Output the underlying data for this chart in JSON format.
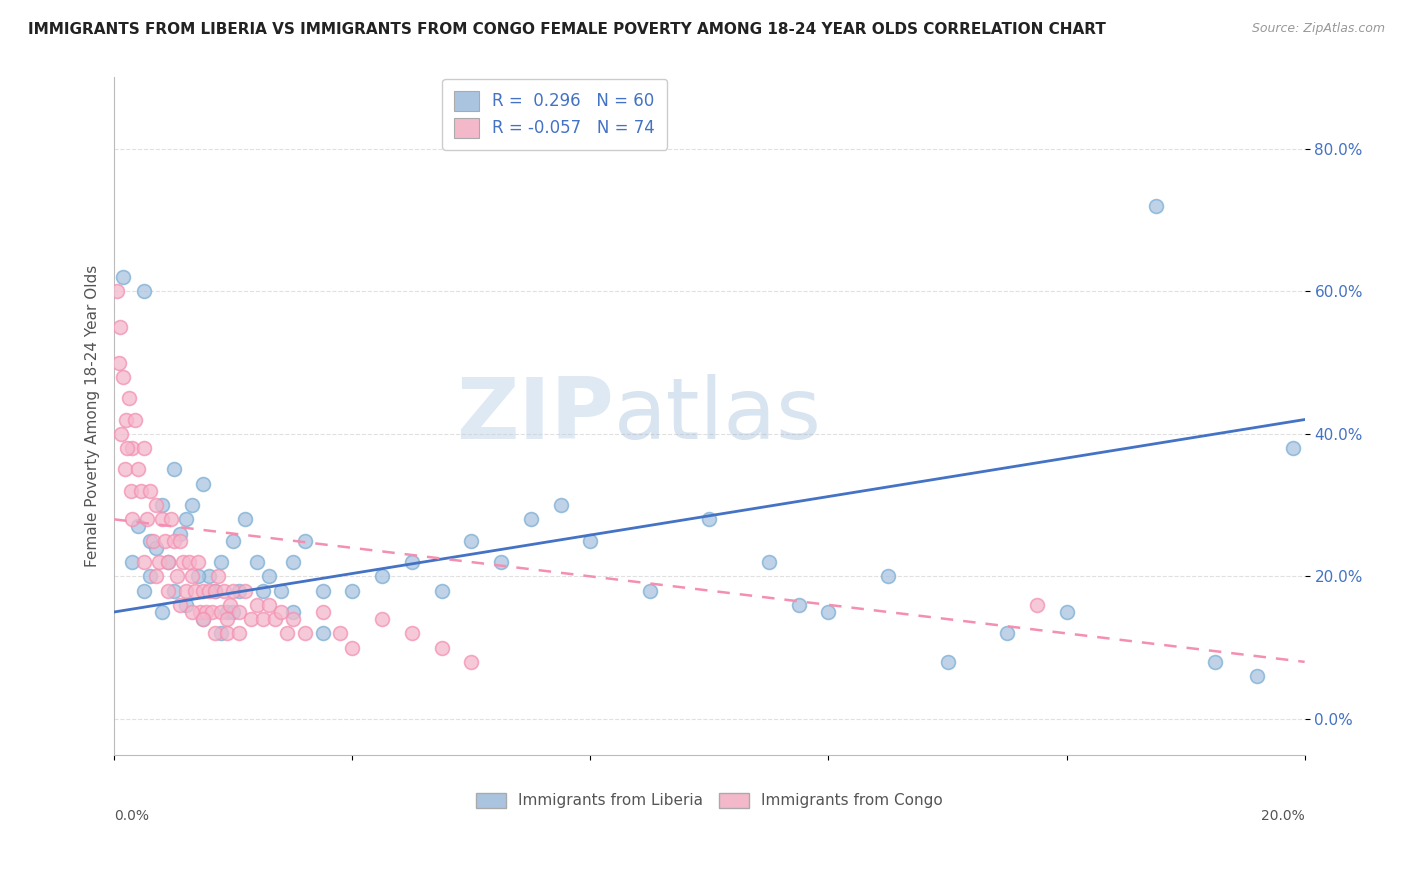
{
  "title": "IMMIGRANTS FROM LIBERIA VS IMMIGRANTS FROM CONGO FEMALE POVERTY AMONG 18-24 YEAR OLDS CORRELATION CHART",
  "source": "Source: ZipAtlas.com",
  "ylabel": "Female Poverty Among 18-24 Year Olds",
  "xlim": [
    0.0,
    20.0
  ],
  "ylim": [
    -5.0,
    90.0
  ],
  "y_ticks": [
    0,
    20,
    40,
    60,
    80
  ],
  "y_tick_labels": [
    "0.0%",
    "20.0%",
    "40.0%",
    "60.0%",
    "80.0%"
  ],
  "liberia_color": "#aac4e0",
  "congo_color": "#f4b8cb",
  "liberia_edge_color": "#7bafd4",
  "congo_edge_color": "#f48fb1",
  "liberia_line_color": "#4472c4",
  "congo_line_color": "#f48fb1",
  "liberia_R": 0.296,
  "liberia_N": 60,
  "congo_R": -0.057,
  "congo_N": 74,
  "watermark_zip": "ZIP",
  "watermark_atlas": "atlas",
  "background_color": "#ffffff",
  "grid_color": "#dddddd",
  "title_fontsize": 11,
  "axis_label_fontsize": 11,
  "tick_fontsize": 10,
  "legend_fontsize": 12,
  "bottom_legend_liberia": "Immigrants from Liberia",
  "bottom_legend_congo": "Immigrants from Congo",
  "liberia_line_x0": 0.0,
  "liberia_line_y0": 15.0,
  "liberia_line_x1": 20.0,
  "liberia_line_y1": 42.0,
  "congo_line_x0": 0.0,
  "congo_line_y0": 28.0,
  "congo_line_x1": 20.0,
  "congo_line_y1": 8.0,
  "liberia_scatter": [
    [
      0.15,
      62.0
    ],
    [
      0.5,
      60.0
    ],
    [
      1.0,
      35.0
    ],
    [
      0.8,
      30.0
    ],
    [
      1.2,
      28.0
    ],
    [
      1.5,
      33.0
    ],
    [
      0.6,
      25.0
    ],
    [
      0.9,
      22.0
    ],
    [
      1.1,
      26.0
    ],
    [
      1.3,
      30.0
    ],
    [
      0.4,
      27.0
    ],
    [
      0.7,
      24.0
    ],
    [
      1.6,
      20.0
    ],
    [
      1.8,
      22.0
    ],
    [
      2.0,
      25.0
    ],
    [
      2.2,
      28.0
    ],
    [
      2.4,
      22.0
    ],
    [
      2.6,
      20.0
    ],
    [
      2.8,
      18.0
    ],
    [
      3.0,
      22.0
    ],
    [
      3.2,
      25.0
    ],
    [
      3.5,
      18.0
    ],
    [
      1.9,
      15.0
    ],
    [
      2.1,
      18.0
    ],
    [
      1.4,
      20.0
    ],
    [
      1.7,
      18.0
    ],
    [
      0.3,
      22.0
    ],
    [
      0.5,
      18.0
    ],
    [
      0.6,
      20.0
    ],
    [
      0.8,
      15.0
    ],
    [
      1.0,
      18.0
    ],
    [
      1.2,
      16.0
    ],
    [
      1.5,
      14.0
    ],
    [
      1.8,
      12.0
    ],
    [
      2.0,
      15.0
    ],
    [
      2.5,
      18.0
    ],
    [
      3.0,
      15.0
    ],
    [
      3.5,
      12.0
    ],
    [
      4.0,
      18.0
    ],
    [
      4.5,
      20.0
    ],
    [
      5.0,
      22.0
    ],
    [
      5.5,
      18.0
    ],
    [
      6.0,
      25.0
    ],
    [
      6.5,
      22.0
    ],
    [
      7.0,
      28.0
    ],
    [
      7.5,
      30.0
    ],
    [
      8.0,
      25.0
    ],
    [
      9.0,
      18.0
    ],
    [
      10.0,
      28.0
    ],
    [
      11.0,
      22.0
    ],
    [
      12.0,
      15.0
    ],
    [
      13.0,
      20.0
    ],
    [
      14.0,
      8.0
    ],
    [
      15.0,
      12.0
    ],
    [
      16.0,
      15.0
    ],
    [
      17.5,
      72.0
    ],
    [
      18.5,
      8.0
    ],
    [
      19.2,
      6.0
    ],
    [
      19.8,
      38.0
    ],
    [
      11.5,
      16.0
    ]
  ],
  "congo_scatter": [
    [
      0.05,
      60.0
    ],
    [
      0.1,
      55.0
    ],
    [
      0.15,
      48.0
    ],
    [
      0.2,
      42.0
    ],
    [
      0.25,
      45.0
    ],
    [
      0.3,
      38.0
    ],
    [
      0.08,
      50.0
    ],
    [
      0.12,
      40.0
    ],
    [
      0.18,
      35.0
    ],
    [
      0.22,
      38.0
    ],
    [
      0.28,
      32.0
    ],
    [
      0.35,
      42.0
    ],
    [
      0.4,
      35.0
    ],
    [
      0.45,
      32.0
    ],
    [
      0.5,
      38.0
    ],
    [
      0.55,
      28.0
    ],
    [
      0.6,
      32.0
    ],
    [
      0.65,
      25.0
    ],
    [
      0.7,
      30.0
    ],
    [
      0.75,
      22.0
    ],
    [
      0.8,
      28.0
    ],
    [
      0.85,
      25.0
    ],
    [
      0.9,
      22.0
    ],
    [
      0.95,
      28.0
    ],
    [
      1.0,
      25.0
    ],
    [
      1.05,
      20.0
    ],
    [
      1.1,
      25.0
    ],
    [
      1.15,
      22.0
    ],
    [
      1.2,
      18.0
    ],
    [
      1.25,
      22.0
    ],
    [
      1.3,
      20.0
    ],
    [
      1.35,
      18.0
    ],
    [
      1.4,
      22.0
    ],
    [
      1.45,
      15.0
    ],
    [
      1.5,
      18.0
    ],
    [
      1.55,
      15.0
    ],
    [
      1.6,
      18.0
    ],
    [
      1.65,
      15.0
    ],
    [
      1.7,
      18.0
    ],
    [
      1.75,
      20.0
    ],
    [
      1.8,
      15.0
    ],
    [
      1.85,
      18.0
    ],
    [
      1.9,
      14.0
    ],
    [
      1.95,
      16.0
    ],
    [
      2.0,
      18.0
    ],
    [
      2.1,
      15.0
    ],
    [
      2.2,
      18.0
    ],
    [
      2.3,
      14.0
    ],
    [
      2.4,
      16.0
    ],
    [
      2.5,
      14.0
    ],
    [
      2.6,
      16.0
    ],
    [
      2.7,
      14.0
    ],
    [
      2.8,
      15.0
    ],
    [
      2.9,
      12.0
    ],
    [
      3.0,
      14.0
    ],
    [
      3.2,
      12.0
    ],
    [
      3.5,
      15.0
    ],
    [
      3.8,
      12.0
    ],
    [
      4.0,
      10.0
    ],
    [
      4.5,
      14.0
    ],
    [
      5.0,
      12.0
    ],
    [
      5.5,
      10.0
    ],
    [
      6.0,
      8.0
    ],
    [
      0.3,
      28.0
    ],
    [
      0.5,
      22.0
    ],
    [
      0.7,
      20.0
    ],
    [
      0.9,
      18.0
    ],
    [
      1.1,
      16.0
    ],
    [
      1.3,
      15.0
    ],
    [
      1.5,
      14.0
    ],
    [
      1.7,
      12.0
    ],
    [
      1.9,
      12.0
    ],
    [
      2.1,
      12.0
    ],
    [
      15.5,
      16.0
    ]
  ]
}
